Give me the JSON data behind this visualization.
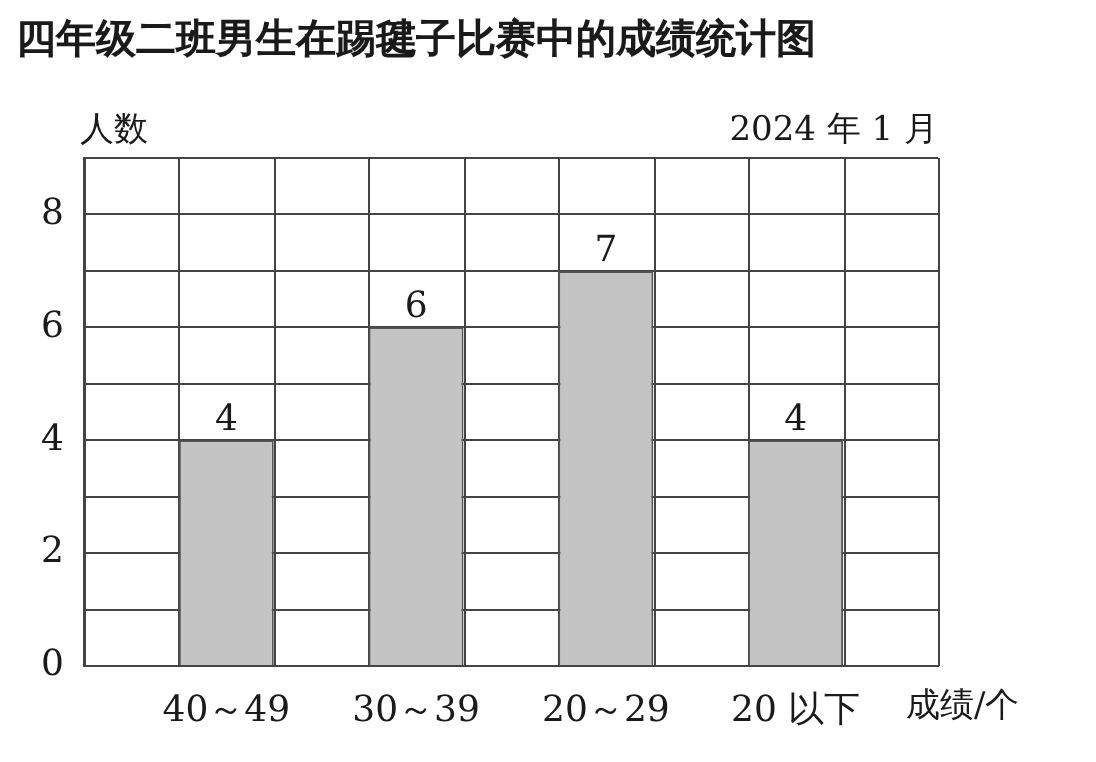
{
  "chart_data": {
    "type": "bar",
    "title": "四年级二班男生在踢毽子比赛中的成绩统计图",
    "subtitle": "2024 年 1 月",
    "ylabel": "人数",
    "xlabel": "成绩/个",
    "categories": [
      "40～49",
      "30～39",
      "20～29",
      "20 以下"
    ],
    "values": [
      4,
      6,
      7,
      4
    ],
    "color": "#c4c4c4",
    "ylim": [
      0,
      9
    ],
    "yticks": [
      0,
      {
        "value": 1,
        "label": null
      },
      2,
      {
        "value": 3,
        "label": null
      },
      4,
      {
        "value": 5,
        "label": null
      },
      6,
      {
        "value": 7,
        "label": null
      },
      8,
      {
        "value": 9,
        "label": null
      }
    ],
    "grid": true,
    "data_labels": true
  }
}
